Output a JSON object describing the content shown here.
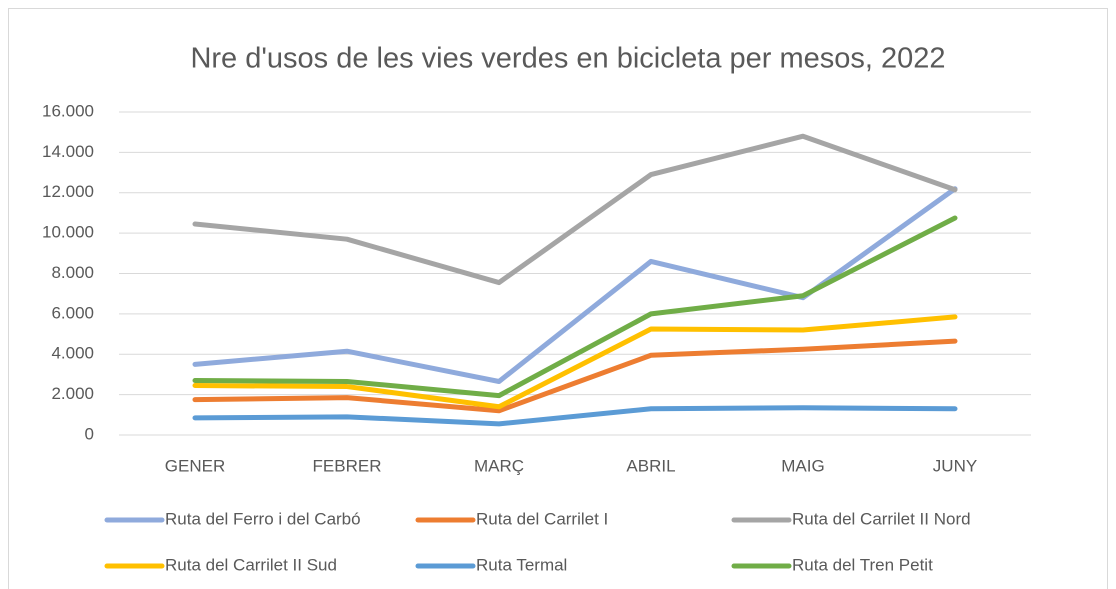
{
  "chart_data": {
    "type": "line",
    "title": "Nre d'usos de les vies verdes en bicicleta per mesos, 2022",
    "categories": [
      "GENER",
      "FEBRER",
      "MARÇ",
      "ABRIL",
      "MAIG",
      "JUNY"
    ],
    "series": [
      {
        "name": "Ruta del Ferro i del Carbó",
        "color": "#8faadc",
        "values": [
          3500,
          4150,
          2650,
          8600,
          6800,
          12200
        ]
      },
      {
        "name": "Ruta del Carrilet I",
        "color": "#ed7d31",
        "values": [
          1750,
          1850,
          1200,
          3950,
          4250,
          4650
        ]
      },
      {
        "name": "Ruta del Carrilet II Nord",
        "color": "#a5a5a5",
        "values": [
          10450,
          9700,
          7550,
          12900,
          14800,
          12150
        ]
      },
      {
        "name": "Ruta del Carrilet II Sud",
        "color": "#ffc000",
        "values": [
          2450,
          2400,
          1400,
          5250,
          5200,
          5850
        ]
      },
      {
        "name": "Ruta Termal",
        "color": "#5b9bd5",
        "values": [
          850,
          900,
          550,
          1300,
          1350,
          1300
        ]
      },
      {
        "name": "Ruta del Tren Petit",
        "color": "#70ad47",
        "values": [
          2700,
          2650,
          1950,
          6000,
          6900,
          10750
        ]
      }
    ],
    "ylim": [
      0,
      16000
    ],
    "yticks": [
      0,
      {
        "value": 2000,
        "label": "2.000"
      },
      {
        "value": 4000,
        "label": "4.000"
      },
      {
        "value": 6000,
        "label": "6.000"
      },
      {
        "value": 8000,
        "label": "8.000"
      },
      {
        "value": 10000,
        "label": "10.000"
      },
      {
        "value": 12000,
        "label": "12.000"
      },
      {
        "value": 14000,
        "label": "14.000"
      },
      {
        "value": 16000,
        "label": "16.000"
      }
    ],
    "grid": true
  }
}
